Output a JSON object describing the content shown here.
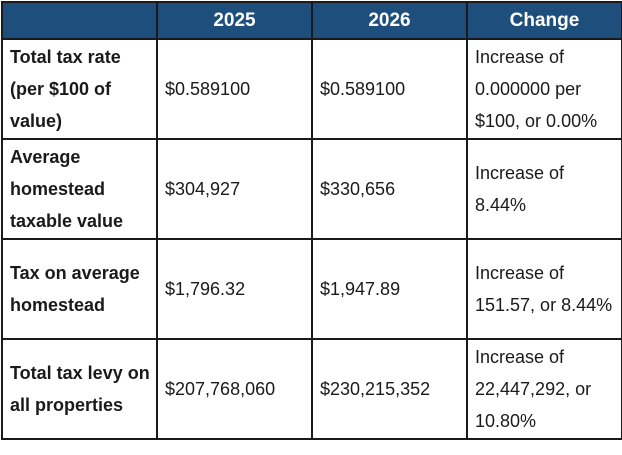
{
  "table": {
    "headers": [
      "",
      "2025",
      "2026",
      "Change"
    ],
    "rows": [
      {
        "label": "Total tax rate (per $100 of value)",
        "y2025": "$0.589100",
        "y2026": "$0.589100",
        "change": "Increase of 0.000000 per $100, or 0.00%"
      },
      {
        "label": "Average homestead taxable value",
        "y2025": "$304,927",
        "y2026": "$330,656",
        "change": "Increase of 8.44%"
      },
      {
        "label": "Tax on average homestead",
        "y2025": "$1,796.32",
        "y2026": "$1,947.89",
        "change": "Increase of 151.57, or 8.44%"
      },
      {
        "label": "Total tax levy on all properties",
        "y2025": "$207,768,060",
        "y2026": "$230,215,352",
        "change": "Increase of 22,447,292, or 10.80%"
      }
    ]
  }
}
